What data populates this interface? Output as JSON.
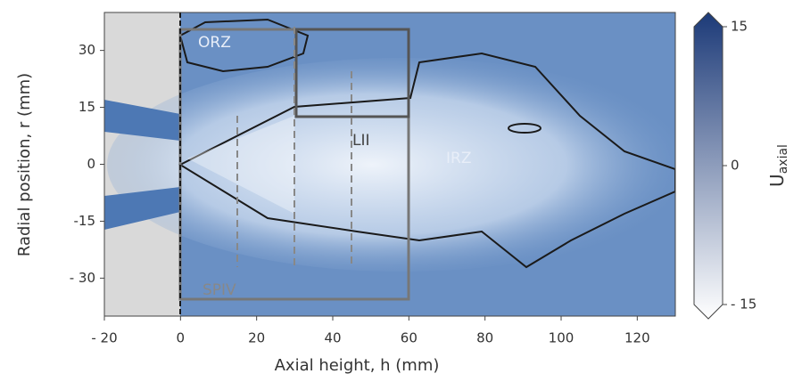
{
  "chart_data": {
    "type": "heatmap",
    "xlabel": "Axial height, h (mm)",
    "ylabel": "Radial position, r (mm)",
    "xlim": [
      -20,
      130
    ],
    "xticks": [
      {
        "value": -20,
        "label": "- 20"
      },
      0,
      20,
      40,
      60,
      80,
      100,
      120
    ],
    "ylim": [
      -40,
      40
    ],
    "yticks": [
      {
        "value": -30,
        "label": "- 30"
      },
      {
        "value": -15,
        "label": "-15"
      },
      0,
      15,
      30
    ],
    "colorbar_label": "U",
    "colorbar_label_sub": "axial",
    "clim": [
      -15,
      15
    ],
    "cticks": [
      {
        "value": -15,
        "label": "- 15"
      },
      0,
      15
    ],
    "colormap": [
      "#ffffff",
      "#1c3a78"
    ],
    "annotations": [
      "ORZ",
      "LII",
      "IRZ",
      "SPIV"
    ]
  }
}
